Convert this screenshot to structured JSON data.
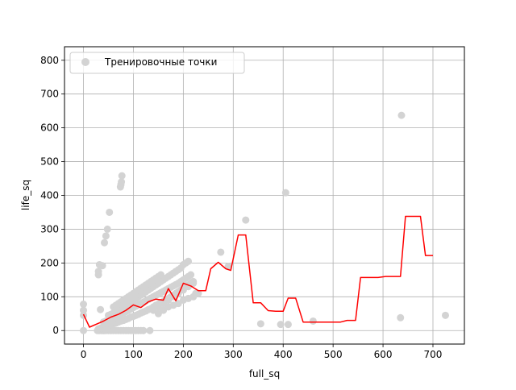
{
  "chart_data": {
    "type": "scatter",
    "xlabel": "full_sq",
    "ylabel": "life_sq",
    "xlim": [
      -38,
      763
    ],
    "ylim": [
      -40,
      840
    ],
    "grid": true,
    "legend_placement": "top-left",
    "x_ticks": [
      0,
      100,
      200,
      300,
      400,
      500,
      600,
      700
    ],
    "y_ticks": [
      0,
      100,
      200,
      300,
      400,
      500,
      600,
      700,
      800
    ],
    "series": [
      {
        "name": "Тренировочные точки",
        "kind": "scatter",
        "color": "#d3d3d3",
        "points": [
          [
            0,
            0
          ],
          [
            0,
            45
          ],
          [
            0,
            60
          ],
          [
            0,
            78
          ],
          [
            28,
            0
          ],
          [
            30,
            0
          ],
          [
            32,
            0
          ],
          [
            35,
            0
          ],
          [
            38,
            0
          ],
          [
            40,
            0
          ],
          [
            42,
            0
          ],
          [
            45,
            0
          ],
          [
            50,
            0
          ],
          [
            55,
            0
          ],
          [
            60,
            0
          ],
          [
            65,
            0
          ],
          [
            70,
            0
          ],
          [
            75,
            0
          ],
          [
            80,
            0
          ],
          [
            85,
            0
          ],
          [
            90,
            0
          ],
          [
            95,
            0
          ],
          [
            100,
            0
          ],
          [
            105,
            0
          ],
          [
            110,
            0
          ],
          [
            115,
            0
          ],
          [
            120,
            0
          ],
          [
            133,
            0
          ],
          [
            30,
            5
          ],
          [
            35,
            8
          ],
          [
            40,
            10
          ],
          [
            45,
            12
          ],
          [
            50,
            15
          ],
          [
            55,
            18
          ],
          [
            60,
            20
          ],
          [
            65,
            22
          ],
          [
            70,
            25
          ],
          [
            75,
            28
          ],
          [
            80,
            30
          ],
          [
            85,
            33
          ],
          [
            90,
            36
          ],
          [
            95,
            40
          ],
          [
            100,
            42
          ],
          [
            105,
            45
          ],
          [
            110,
            48
          ],
          [
            115,
            52
          ],
          [
            120,
            55
          ],
          [
            125,
            58
          ],
          [
            130,
            62
          ],
          [
            135,
            65
          ],
          [
            140,
            70
          ],
          [
            145,
            75
          ],
          [
            150,
            78
          ],
          [
            155,
            82
          ],
          [
            160,
            86
          ],
          [
            165,
            90
          ],
          [
            170,
            95
          ],
          [
            175,
            100
          ],
          [
            180,
            105
          ],
          [
            185,
            110
          ],
          [
            190,
            115
          ],
          [
            195,
            120
          ],
          [
            200,
            125
          ],
          [
            205,
            130
          ],
          [
            210,
            135
          ],
          [
            215,
            140
          ],
          [
            220,
            145
          ],
          [
            40,
            25
          ],
          [
            45,
            28
          ],
          [
            50,
            30
          ],
          [
            55,
            33
          ],
          [
            60,
            36
          ],
          [
            65,
            40
          ],
          [
            70,
            44
          ],
          [
            75,
            48
          ],
          [
            80,
            52
          ],
          [
            85,
            56
          ],
          [
            90,
            60
          ],
          [
            95,
            64
          ],
          [
            100,
            68
          ],
          [
            105,
            72
          ],
          [
            110,
            76
          ],
          [
            115,
            80
          ],
          [
            120,
            84
          ],
          [
            125,
            88
          ],
          [
            130,
            92
          ],
          [
            135,
            96
          ],
          [
            140,
            100
          ],
          [
            145,
            104
          ],
          [
            150,
            108
          ],
          [
            155,
            112
          ],
          [
            160,
            116
          ],
          [
            165,
            120
          ],
          [
            170,
            124
          ],
          [
            175,
            128
          ],
          [
            180,
            132
          ],
          [
            185,
            136
          ],
          [
            190,
            140
          ],
          [
            195,
            145
          ],
          [
            200,
            150
          ],
          [
            205,
            155
          ],
          [
            210,
            160
          ],
          [
            215,
            165
          ],
          [
            50,
            45
          ],
          [
            55,
            48
          ],
          [
            60,
            52
          ],
          [
            65,
            56
          ],
          [
            70,
            60
          ],
          [
            75,
            65
          ],
          [
            80,
            70
          ],
          [
            85,
            75
          ],
          [
            90,
            80
          ],
          [
            95,
            85
          ],
          [
            100,
            90
          ],
          [
            105,
            95
          ],
          [
            110,
            100
          ],
          [
            115,
            105
          ],
          [
            120,
            110
          ],
          [
            125,
            115
          ],
          [
            130,
            120
          ],
          [
            135,
            125
          ],
          [
            140,
            130
          ],
          [
            145,
            135
          ],
          [
            150,
            140
          ],
          [
            155,
            145
          ],
          [
            160,
            150
          ],
          [
            165,
            155
          ],
          [
            170,
            160
          ],
          [
            175,
            165
          ],
          [
            180,
            170
          ],
          [
            185,
            175
          ],
          [
            190,
            180
          ],
          [
            195,
            185
          ],
          [
            200,
            195
          ],
          [
            205,
            200
          ],
          [
            210,
            205
          ],
          [
            60,
            70
          ],
          [
            65,
            75
          ],
          [
            70,
            80
          ],
          [
            75,
            85
          ],
          [
            80,
            90
          ],
          [
            85,
            95
          ],
          [
            90,
            100
          ],
          [
            95,
            105
          ],
          [
            100,
            110
          ],
          [
            105,
            115
          ],
          [
            110,
            120
          ],
          [
            115,
            125
          ],
          [
            120,
            130
          ],
          [
            125,
            135
          ],
          [
            130,
            140
          ],
          [
            135,
            145
          ],
          [
            140,
            150
          ],
          [
            145,
            155
          ],
          [
            150,
            160
          ],
          [
            155,
            165
          ],
          [
            140,
            60
          ],
          [
            150,
            70
          ],
          [
            160,
            80
          ],
          [
            170,
            90
          ],
          [
            180,
            100
          ],
          [
            190,
            110
          ],
          [
            200,
            120
          ],
          [
            210,
            130
          ],
          [
            220,
            140
          ],
          [
            150,
            50
          ],
          [
            160,
            60
          ],
          [
            170,
            70
          ],
          [
            180,
            75
          ],
          [
            190,
            80
          ],
          [
            200,
            90
          ],
          [
            210,
            95
          ],
          [
            220,
            100
          ],
          [
            225,
            110
          ],
          [
            30,
            165
          ],
          [
            30,
            175
          ],
          [
            32,
            195
          ],
          [
            38,
            192
          ],
          [
            42,
            260
          ],
          [
            45,
            280
          ],
          [
            48,
            300
          ],
          [
            52,
            350
          ],
          [
            74,
            425
          ],
          [
            75,
            432
          ],
          [
            76,
            440
          ],
          [
            77,
            458
          ],
          [
            34,
            62
          ],
          [
            230,
            110
          ],
          [
            275,
            232
          ],
          [
            290,
            190
          ],
          [
            325,
            327
          ],
          [
            355,
            20
          ],
          [
            395,
            18
          ],
          [
            405,
            408
          ],
          [
            410,
            18
          ],
          [
            460,
            28
          ],
          [
            635,
            38
          ],
          [
            637,
            637
          ],
          [
            725,
            45
          ]
        ]
      },
      {
        "name": "",
        "kind": "line",
        "color": "#ff0000",
        "points": [
          [
            0,
            48
          ],
          [
            12,
            10
          ],
          [
            40,
            28
          ],
          [
            55,
            40
          ],
          [
            70,
            48
          ],
          [
            85,
            60
          ],
          [
            100,
            76
          ],
          [
            115,
            68
          ],
          [
            130,
            85
          ],
          [
            145,
            93
          ],
          [
            160,
            90
          ],
          [
            170,
            124
          ],
          [
            185,
            88
          ],
          [
            200,
            140
          ],
          [
            215,
            132
          ],
          [
            230,
            118
          ],
          [
            245,
            118
          ],
          [
            255,
            183
          ],
          [
            270,
            202
          ],
          [
            285,
            183
          ],
          [
            295,
            178
          ],
          [
            310,
            283
          ],
          [
            325,
            283
          ],
          [
            340,
            82
          ],
          [
            355,
            82
          ],
          [
            370,
            59
          ],
          [
            385,
            57
          ],
          [
            400,
            57
          ],
          [
            410,
            96
          ],
          [
            425,
            96
          ],
          [
            440,
            25
          ],
          [
            455,
            25
          ],
          [
            470,
            25
          ],
          [
            485,
            25
          ],
          [
            500,
            25
          ],
          [
            515,
            25
          ],
          [
            528,
            30
          ],
          [
            545,
            30
          ],
          [
            555,
            157
          ],
          [
            570,
            157
          ],
          [
            590,
            157
          ],
          [
            605,
            160
          ],
          [
            620,
            160
          ],
          [
            635,
            160
          ],
          [
            645,
            338
          ],
          [
            660,
            338
          ],
          [
            675,
            338
          ],
          [
            685,
            222
          ],
          [
            700,
            222
          ]
        ]
      }
    ]
  }
}
